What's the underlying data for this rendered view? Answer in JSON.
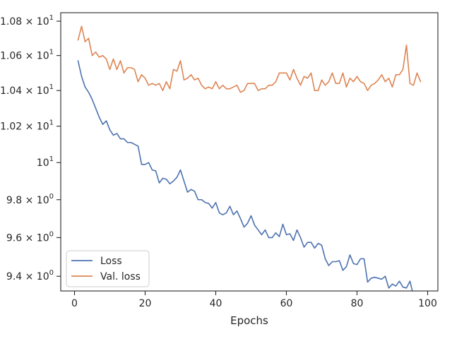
{
  "chart_data": {
    "type": "line",
    "title": "",
    "xlabel": "Epochs",
    "ylabel": "",
    "xlim": [
      -3.9,
      102.9
    ],
    "ylim": [
      9.325,
      10.85
    ],
    "y_scale": "log",
    "grid": false,
    "legend_position": "lower-left",
    "x_ticks": [
      0,
      20,
      40,
      60,
      80,
      100
    ],
    "x_tick_labels": [
      "0",
      "20",
      "40",
      "60",
      "80",
      "100"
    ],
    "y_ticks": [
      9.4,
      9.6,
      9.8,
      10.0,
      10.2,
      10.4,
      10.6,
      10.8
    ],
    "y_tick_labels": [
      {
        "mant": "9.4",
        "exp": "0"
      },
      {
        "mant": "9.6",
        "exp": "0"
      },
      {
        "mant": "9.8",
        "exp": "0"
      },
      {
        "mant": "",
        "exp": "1"
      },
      {
        "mant": "1.02",
        "exp": "1"
      },
      {
        "mant": "1.04",
        "exp": "1"
      },
      {
        "mant": "1.06",
        "exp": "1"
      },
      {
        "mant": "1.08",
        "exp": "1"
      }
    ],
    "series": [
      {
        "name": "Loss",
        "color": "#4c72b0",
        "x": [
          1,
          2,
          3,
          4,
          5,
          6,
          7,
          8,
          9,
          10,
          11,
          12,
          13,
          14,
          15,
          16,
          17,
          18,
          19,
          20,
          21,
          22,
          23,
          24,
          25,
          26,
          27,
          28,
          29,
          30,
          31,
          32,
          33,
          34,
          35,
          36,
          37,
          38,
          39,
          40,
          41,
          42,
          43,
          44,
          45,
          46,
          47,
          48,
          49,
          50,
          51,
          52,
          53,
          54,
          55,
          56,
          57,
          58,
          59,
          60,
          61,
          62,
          63,
          64,
          65,
          66,
          67,
          68,
          69,
          70,
          71,
          72,
          73,
          74,
          75,
          76,
          77,
          78,
          79,
          80,
          81,
          82,
          83,
          84,
          85,
          86,
          87,
          88,
          89,
          90,
          91,
          92,
          93,
          94,
          95,
          96,
          97,
          98
        ],
        "values": [
          10.57,
          10.48,
          10.42,
          10.39,
          10.35,
          10.3,
          10.25,
          10.21,
          10.23,
          10.18,
          10.15,
          10.16,
          10.13,
          10.13,
          10.11,
          10.11,
          10.1,
          10.09,
          9.99,
          9.99,
          10.0,
          9.96,
          9.955,
          9.89,
          9.915,
          9.91,
          9.885,
          9.9,
          9.92,
          9.96,
          9.9,
          9.84,
          9.855,
          9.845,
          9.8,
          9.8,
          9.785,
          9.78,
          9.755,
          9.785,
          9.73,
          9.72,
          9.73,
          9.765,
          9.72,
          9.74,
          9.7,
          9.655,
          9.675,
          9.715,
          9.665,
          9.64,
          9.615,
          9.64,
          9.6,
          9.6,
          9.625,
          9.605,
          9.67,
          9.615,
          9.62,
          9.585,
          9.64,
          9.6,
          9.55,
          9.575,
          9.575,
          9.545,
          9.57,
          9.56,
          9.49,
          9.455,
          9.475,
          9.475,
          9.48,
          9.43,
          9.45,
          9.51,
          9.465,
          9.46,
          9.49,
          9.49,
          9.37,
          9.39,
          9.395,
          9.39,
          9.385,
          9.4,
          9.34,
          9.36,
          9.35,
          9.375,
          9.345,
          9.34,
          9.375,
          9.3,
          9.3,
          9.3
        ]
      },
      {
        "name": "Val. loss",
        "color": "#dd8452",
        "x": [
          1,
          2,
          3,
          4,
          5,
          6,
          7,
          8,
          9,
          10,
          11,
          12,
          13,
          14,
          15,
          16,
          17,
          18,
          19,
          20,
          21,
          22,
          23,
          24,
          25,
          26,
          27,
          28,
          29,
          30,
          31,
          32,
          33,
          34,
          35,
          36,
          37,
          38,
          39,
          40,
          41,
          42,
          43,
          44,
          45,
          46,
          47,
          48,
          49,
          50,
          51,
          52,
          53,
          54,
          55,
          56,
          57,
          58,
          59,
          60,
          61,
          62,
          63,
          64,
          65,
          66,
          67,
          68,
          69,
          70,
          71,
          72,
          73,
          74,
          75,
          76,
          77,
          78,
          79,
          80,
          81,
          82,
          83,
          84,
          85,
          86,
          87,
          88,
          89,
          90,
          91,
          92,
          93,
          94,
          95,
          96,
          97,
          98
        ],
        "values": [
          10.69,
          10.77,
          10.68,
          10.7,
          10.6,
          10.62,
          10.59,
          10.6,
          10.58,
          10.52,
          10.58,
          10.52,
          10.57,
          10.5,
          10.53,
          10.53,
          10.52,
          10.45,
          10.49,
          10.47,
          10.43,
          10.44,
          10.43,
          10.44,
          10.4,
          10.45,
          10.41,
          10.52,
          10.51,
          10.57,
          10.46,
          10.47,
          10.49,
          10.46,
          10.47,
          10.43,
          10.41,
          10.42,
          10.41,
          10.45,
          10.41,
          10.43,
          10.41,
          10.41,
          10.42,
          10.43,
          10.39,
          10.4,
          10.44,
          10.44,
          10.44,
          10.4,
          10.41,
          10.41,
          10.43,
          10.43,
          10.45,
          10.5,
          10.5,
          10.5,
          10.46,
          10.52,
          10.47,
          10.43,
          10.48,
          10.47,
          10.5,
          10.4,
          10.4,
          10.46,
          10.43,
          10.45,
          10.5,
          10.44,
          10.44,
          10.5,
          10.42,
          10.47,
          10.45,
          10.48,
          10.45,
          10.44,
          10.4,
          10.43,
          10.44,
          10.46,
          10.49,
          10.45,
          10.47,
          10.42,
          10.49,
          10.49,
          10.52,
          10.66,
          10.44,
          10.43,
          10.5,
          10.45
        ]
      }
    ]
  }
}
